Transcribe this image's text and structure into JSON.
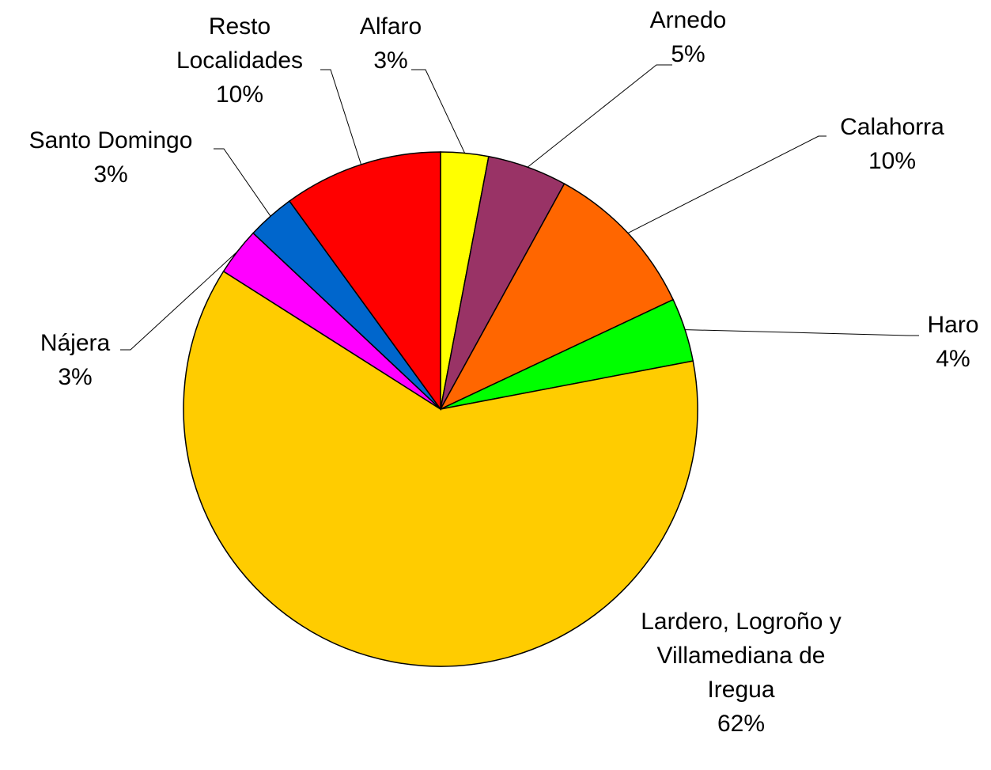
{
  "chart_data": {
    "type": "pie",
    "categories": [
      "Alfaro",
      "Arnedo",
      "Calahorra",
      "Haro",
      "Lardero, Logroño y Villamediana de Iregua",
      "Nájera",
      "Santo Domingo",
      "Resto Localidades"
    ],
    "values": [
      3,
      5,
      10,
      4,
      62,
      3,
      3,
      10
    ],
    "value_labels": [
      "3%",
      "5%",
      "10%",
      "4%",
      "62%",
      "3%",
      "3%",
      "10%"
    ],
    "colors": [
      "#ffff00",
      "#993366",
      "#ff6600",
      "#00ff00",
      "#ffcc00",
      "#ff00ff",
      "#0066cc",
      "#ff0000"
    ]
  }
}
